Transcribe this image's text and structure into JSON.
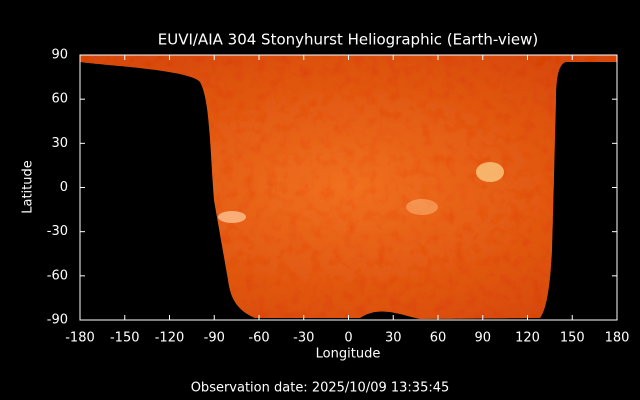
{
  "chart_data": {
    "type": "image",
    "title": "EUVI/AIA 304 Stonyhurst Heliographic (Earth-view)",
    "xlabel": "Longitude",
    "ylabel": "Latitude",
    "footer": "Observation date: 2025/10/09 13:35:45",
    "xlim": [
      -180,
      180
    ],
    "ylim": [
      -90,
      90
    ],
    "xticks": [
      -180,
      -150,
      -120,
      -90,
      -60,
      -30,
      0,
      30,
      60,
      90,
      120,
      150,
      180
    ],
    "yticks": [
      -90,
      -60,
      -30,
      0,
      30,
      60,
      90
    ]
  }
}
